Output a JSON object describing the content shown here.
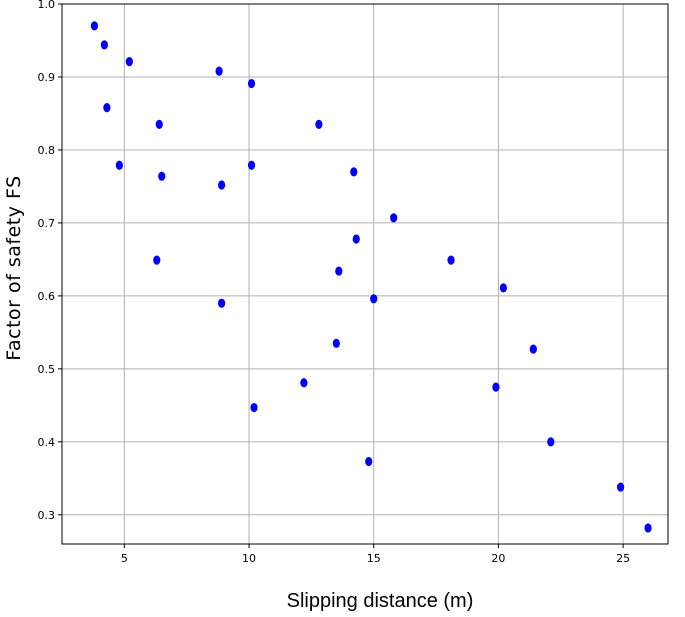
{
  "chart_data": {
    "type": "scatter",
    "xlabel": "Slipping distance (m)",
    "ylabel": "Factor of safety FS",
    "xlim": [
      2.5,
      26.8
    ],
    "ylim": [
      0.26,
      1.0
    ],
    "xticks": [
      5,
      10,
      15,
      20,
      25
    ],
    "xtick_labels": [
      "5",
      "10",
      "15",
      "20",
      "25"
    ],
    "yticks": [
      0.3,
      0.4,
      0.5,
      0.6,
      0.7,
      0.8,
      0.9,
      1.0
    ],
    "ytick_labels": [
      "0.3",
      "0.4",
      "0.5",
      "0.6",
      "0.7",
      "0.8",
      "0.9",
      "1.0"
    ],
    "grid": true,
    "marker_color": "#0000ff",
    "series": [
      {
        "points": [
          {
            "x": 3.8,
            "y": 0.97
          },
          {
            "x": 4.2,
            "y": 0.944
          },
          {
            "x": 4.3,
            "y": 0.858
          },
          {
            "x": 4.8,
            "y": 0.779
          },
          {
            "x": 5.2,
            "y": 0.921
          },
          {
            "x": 6.3,
            "y": 0.649
          },
          {
            "x": 6.4,
            "y": 0.835
          },
          {
            "x": 6.5,
            "y": 0.764
          },
          {
            "x": 8.8,
            "y": 0.908
          },
          {
            "x": 8.9,
            "y": 0.752
          },
          {
            "x": 8.9,
            "y": 0.59
          },
          {
            "x": 10.1,
            "y": 0.891
          },
          {
            "x": 10.1,
            "y": 0.779
          },
          {
            "x": 10.2,
            "y": 0.447
          },
          {
            "x": 12.2,
            "y": 0.481
          },
          {
            "x": 12.8,
            "y": 0.835
          },
          {
            "x": 13.5,
            "y": 0.535
          },
          {
            "x": 13.6,
            "y": 0.634
          },
          {
            "x": 14.2,
            "y": 0.77
          },
          {
            "x": 14.3,
            "y": 0.678
          },
          {
            "x": 14.8,
            "y": 0.373
          },
          {
            "x": 15.0,
            "y": 0.596
          },
          {
            "x": 15.8,
            "y": 0.707
          },
          {
            "x": 18.1,
            "y": 0.649
          },
          {
            "x": 19.9,
            "y": 0.475
          },
          {
            "x": 20.2,
            "y": 0.611
          },
          {
            "x": 21.4,
            "y": 0.527
          },
          {
            "x": 22.1,
            "y": 0.4
          },
          {
            "x": 24.9,
            "y": 0.338
          },
          {
            "x": 26.0,
            "y": 0.282
          }
        ]
      }
    ]
  }
}
